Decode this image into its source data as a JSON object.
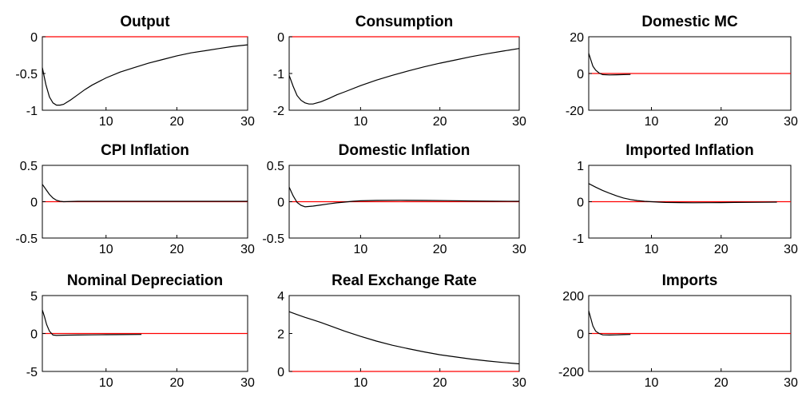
{
  "chart_data": [
    {
      "type": "line",
      "title": "Output",
      "xlim": [
        1,
        30
      ],
      "ylim": [
        -1,
        0
      ],
      "xticks": [
        10,
        20,
        30
      ],
      "yticks": [
        -1,
        -0.5,
        0
      ],
      "xtick_labels": [
        "10",
        "20",
        "30"
      ],
      "ytick_labels": [
        "-1",
        "-0.5",
        "0"
      ],
      "zero_line_color": "#ff0000",
      "series_color": "#000000",
      "x": [
        1,
        1.5,
        2,
        2.5,
        3,
        3.5,
        4,
        5,
        6,
        7,
        8,
        10,
        12,
        14,
        16,
        18,
        20,
        22,
        24,
        26,
        28,
        30
      ],
      "y": [
        -0.42,
        -0.65,
        -0.82,
        -0.9,
        -0.93,
        -0.93,
        -0.92,
        -0.86,
        -0.79,
        -0.72,
        -0.66,
        -0.56,
        -0.48,
        -0.42,
        -0.36,
        -0.31,
        -0.26,
        -0.22,
        -0.19,
        -0.16,
        -0.13,
        -0.11
      ]
    },
    {
      "type": "line",
      "title": "Consumption",
      "xlim": [
        1,
        30
      ],
      "ylim": [
        -2,
        0
      ],
      "xticks": [
        10,
        20,
        30
      ],
      "yticks": [
        -2,
        -1,
        0
      ],
      "xtick_labels": [
        "10",
        "20",
        "30"
      ],
      "ytick_labels": [
        "-2",
        "-1",
        "0"
      ],
      "zero_line_color": "#ff0000",
      "series_color": "#000000",
      "x": [
        1,
        1.5,
        2,
        2.5,
        3,
        3.5,
        4,
        5,
        6,
        7,
        8,
        10,
        12,
        14,
        16,
        18,
        20,
        22,
        24,
        26,
        28,
        30
      ],
      "y": [
        -1.05,
        -1.35,
        -1.6,
        -1.73,
        -1.8,
        -1.83,
        -1.83,
        -1.77,
        -1.68,
        -1.58,
        -1.5,
        -1.33,
        -1.18,
        -1.05,
        -0.93,
        -0.82,
        -0.72,
        -0.63,
        -0.54,
        -0.46,
        -0.39,
        -0.32
      ]
    },
    {
      "type": "line",
      "title": "Domestic MC",
      "xlim": [
        1,
        30
      ],
      "ylim": [
        -20,
        20
      ],
      "xticks": [
        10,
        20,
        30
      ],
      "yticks": [
        -20,
        0,
        20
      ],
      "xtick_labels": [
        "10",
        "20",
        "30"
      ],
      "ytick_labels": [
        "-20",
        "0",
        "20"
      ],
      "zero_line_color": "#ff0000",
      "series_color": "#000000",
      "x": [
        1,
        1.3,
        1.6,
        2,
        2.5,
        3,
        4,
        5,
        6,
        7
      ],
      "y": [
        11,
        7.5,
        4,
        1.8,
        0.2,
        -0.6,
        -0.8,
        -0.7,
        -0.6,
        -0.5
      ]
    },
    {
      "type": "line",
      "title": "CPI Inflation",
      "xlim": [
        1,
        30
      ],
      "ylim": [
        -0.5,
        0.5
      ],
      "xticks": [
        10,
        20,
        30
      ],
      "yticks": [
        -0.5,
        0,
        0.5
      ],
      "xtick_labels": [
        "10",
        "20",
        "30"
      ],
      "ytick_labels": [
        "-0.5",
        "0",
        "0.5"
      ],
      "zero_line_color": "#ff0000",
      "series_color": "#000000",
      "x": [
        1,
        1.5,
        2,
        2.5,
        3,
        3.5,
        4,
        6,
        10,
        15,
        20,
        25,
        30
      ],
      "y": [
        0.24,
        0.17,
        0.1,
        0.05,
        0.02,
        0.005,
        0.0,
        0.005,
        0.005,
        0.005,
        0.005,
        0.005,
        0.005
      ]
    },
    {
      "type": "line",
      "title": "Domestic Inflation",
      "xlim": [
        1,
        30
      ],
      "ylim": [
        -0.5,
        0.5
      ],
      "xticks": [
        10,
        20,
        30
      ],
      "yticks": [
        -0.5,
        0,
        0.5
      ],
      "xtick_labels": [
        "10",
        "20",
        "30"
      ],
      "ytick_labels": [
        "-0.5",
        "0",
        "0.5"
      ],
      "zero_line_color": "#ff0000",
      "series_color": "#000000",
      "x": [
        1,
        1.5,
        2,
        2.5,
        3,
        4,
        5,
        6,
        7,
        8,
        9,
        10,
        12,
        15,
        18,
        21,
        24,
        27,
        30
      ],
      "y": [
        0.2,
        0.08,
        -0.01,
        -0.05,
        -0.07,
        -0.06,
        -0.045,
        -0.03,
        -0.015,
        -0.005,
        0.005,
        0.012,
        0.018,
        0.02,
        0.018,
        0.014,
        0.01,
        0.007,
        0.005
      ]
    },
    {
      "type": "line",
      "title": "Imported Inflation",
      "xlim": [
        1,
        30
      ],
      "ylim": [
        -1,
        1
      ],
      "xticks": [
        10,
        20,
        30
      ],
      "yticks": [
        -1,
        0,
        1
      ],
      "xtick_labels": [
        "10",
        "20",
        "30"
      ],
      "ytick_labels": [
        "-1",
        "0",
        "1"
      ],
      "zero_line_color": "#ff0000",
      "series_color": "#000000",
      "x": [
        1,
        2,
        3,
        4,
        5,
        6,
        7,
        8,
        9,
        10,
        11,
        12,
        14,
        16,
        18,
        20,
        22,
        24,
        26,
        28
      ],
      "y": [
        0.5,
        0.4,
        0.31,
        0.23,
        0.16,
        0.1,
        0.06,
        0.03,
        0.01,
        0.0,
        -0.01,
        -0.02,
        -0.025,
        -0.028,
        -0.027,
        -0.025,
        -0.02,
        -0.018,
        -0.015,
        -0.012
      ]
    },
    {
      "type": "line",
      "title": "Nominal Depreciation",
      "xlim": [
        1,
        30
      ],
      "ylim": [
        -5,
        5
      ],
      "xticks": [
        10,
        20,
        30
      ],
      "yticks": [
        -5,
        0,
        5
      ],
      "xtick_labels": [
        "10",
        "20",
        "30"
      ],
      "ytick_labels": [
        "-5",
        "0",
        "5"
      ],
      "zero_line_color": "#ff0000",
      "series_color": "#000000",
      "x": [
        1,
        1.3,
        1.6,
        2,
        2.5,
        3,
        4,
        6,
        8,
        10,
        12,
        15
      ],
      "y": [
        3.1,
        2.2,
        1.2,
        0.3,
        -0.2,
        -0.25,
        -0.22,
        -0.2,
        -0.18,
        -0.16,
        -0.15,
        -0.13
      ]
    },
    {
      "type": "line",
      "title": "Real Exchange Rate",
      "xlim": [
        1,
        30
      ],
      "ylim": [
        0,
        4
      ],
      "xticks": [
        10,
        20,
        30
      ],
      "yticks": [
        0,
        2,
        4
      ],
      "xtick_labels": [
        "10",
        "20",
        "30"
      ],
      "ytick_labels": [
        "0",
        "2",
        "4"
      ],
      "zero_line_color": "#ff0000",
      "series_color": "#000000",
      "x": [
        1,
        2,
        3,
        4,
        5,
        6,
        8,
        10,
        12,
        14,
        16,
        18,
        20,
        22,
        24,
        26,
        28,
        30
      ],
      "y": [
        3.15,
        3.0,
        2.85,
        2.72,
        2.58,
        2.43,
        2.12,
        1.85,
        1.6,
        1.38,
        1.2,
        1.03,
        0.88,
        0.76,
        0.65,
        0.55,
        0.47,
        0.4
      ]
    },
    {
      "type": "line",
      "title": "Imports",
      "xlim": [
        1,
        30
      ],
      "ylim": [
        -200,
        200
      ],
      "xticks": [
        10,
        20,
        30
      ],
      "yticks": [
        -200,
        0,
        200
      ],
      "xtick_labels": [
        "10",
        "20",
        "30"
      ],
      "ytick_labels": [
        "-200",
        "0",
        "200"
      ],
      "zero_line_color": "#ff0000",
      "series_color": "#000000",
      "x": [
        1,
        1.3,
        1.6,
        2,
        2.5,
        3,
        4,
        5,
        6,
        7
      ],
      "y": [
        120,
        80,
        40,
        12,
        0,
        -7,
        -8,
        -7,
        -6,
        -5
      ]
    }
  ]
}
